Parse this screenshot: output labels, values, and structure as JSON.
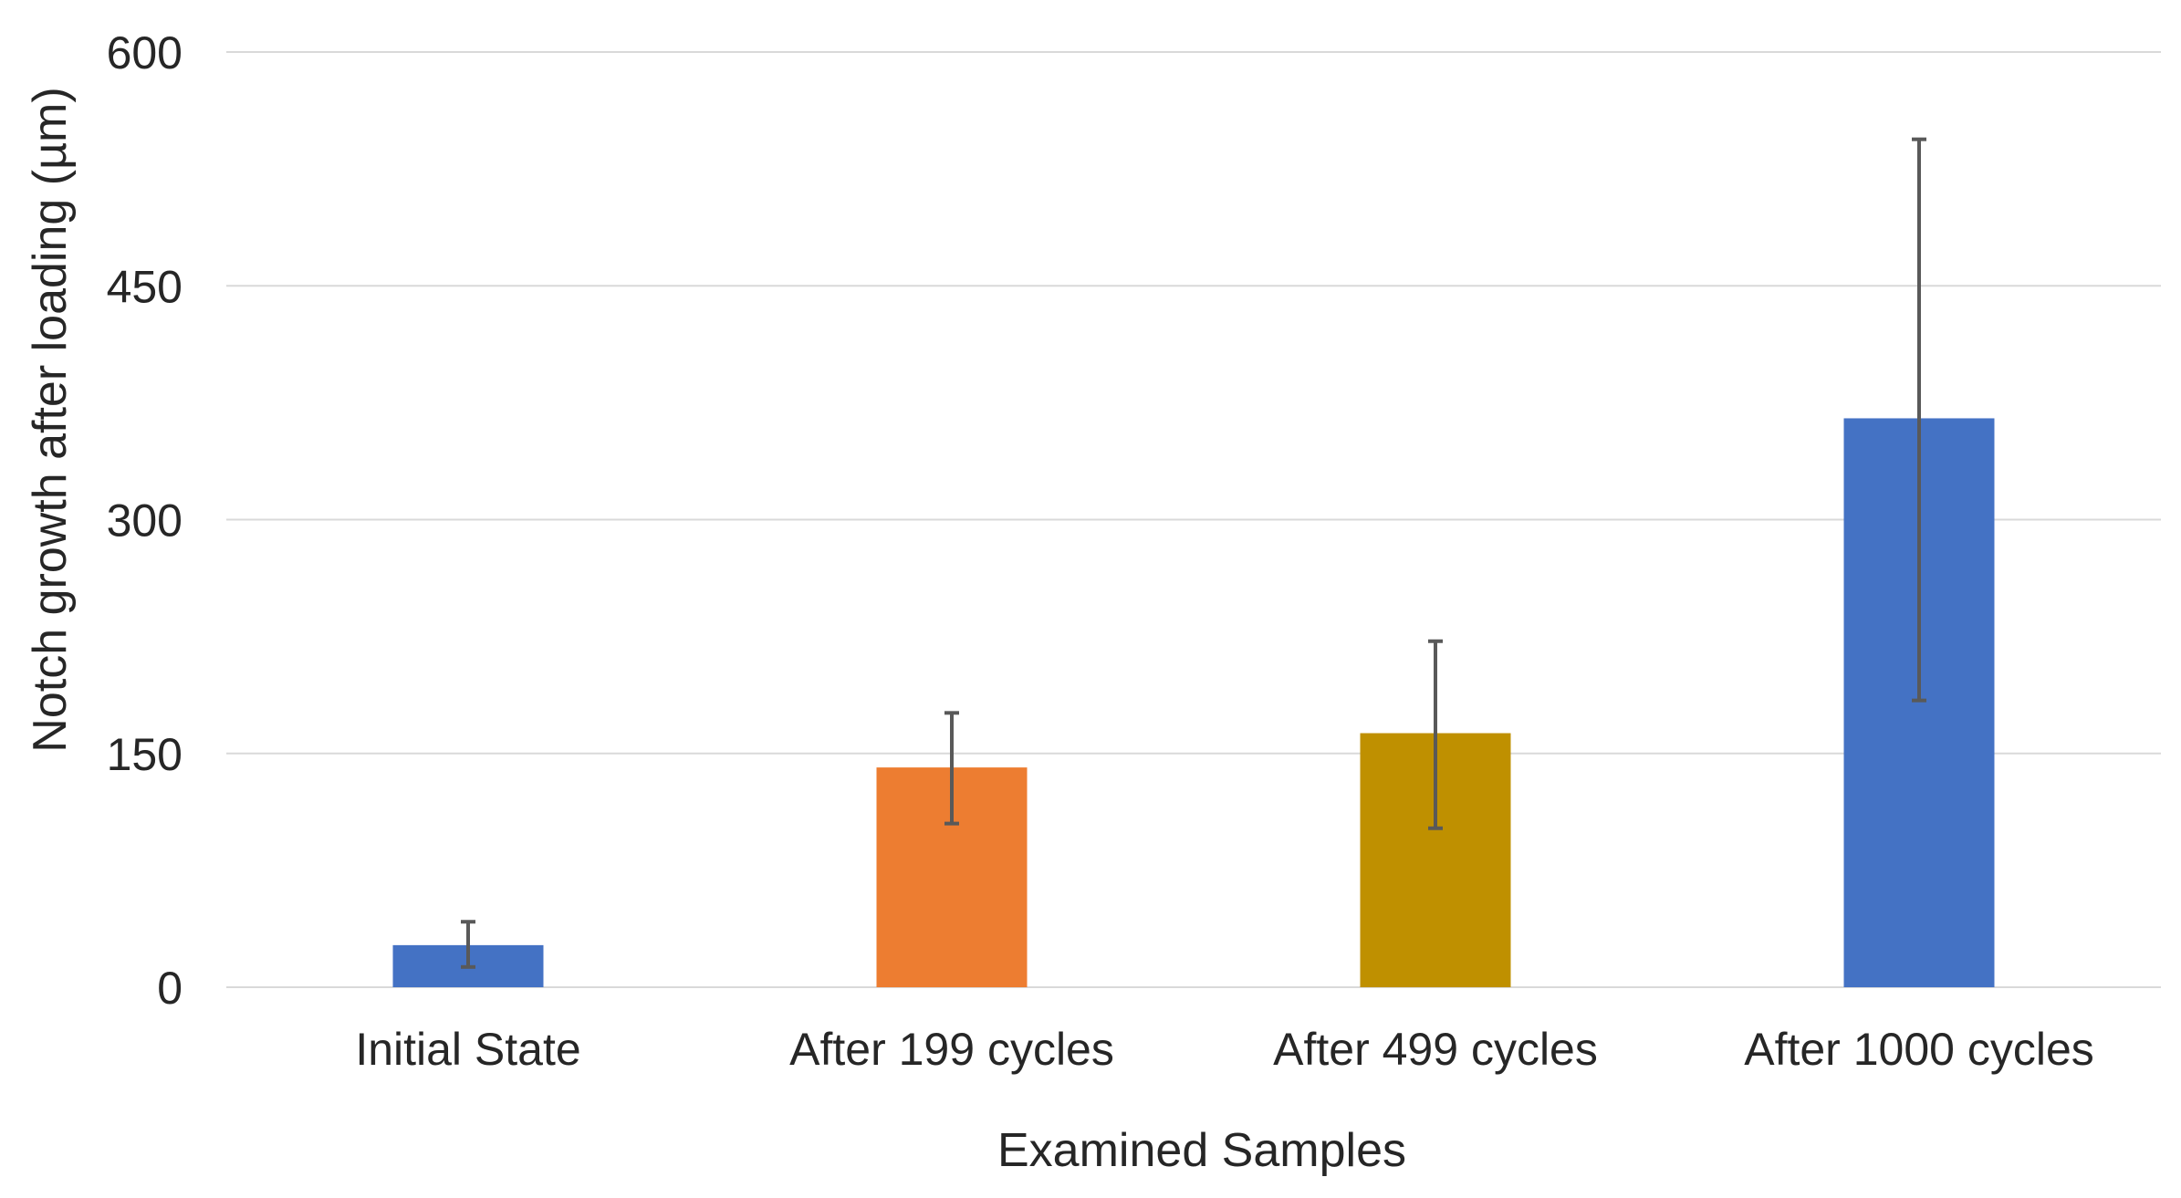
{
  "chart_data": {
    "type": "bar",
    "title": "",
    "xlabel": "Examined Samples",
    "ylabel": "Notch growth after loading (µm)",
    "categories": [
      "Initial State",
      "After 199 cycles",
      "After 499 cycles",
      "After 1000 cycles"
    ],
    "values": [
      27,
      141,
      163,
      365
    ],
    "error_bars": [
      {
        "low": 13,
        "high": 42
      },
      {
        "low": 105,
        "high": 176
      },
      {
        "low": 102,
        "high": 222
      },
      {
        "low": 184,
        "high": 544
      }
    ],
    "bar_colors": [
      "#4472C4",
      "#ED7D31",
      "#BF9000",
      "#4472C4"
    ],
    "ylim": [
      0,
      600
    ],
    "yticks": [
      0,
      150,
      300,
      450,
      600
    ],
    "ytick_labels": [
      "0",
      "150",
      "300",
      "450",
      "600"
    ],
    "grid": true,
    "legend": "none"
  },
  "colors": {
    "grid": "#D9D9D9",
    "error_bar": "#595959",
    "text": "#262626"
  }
}
